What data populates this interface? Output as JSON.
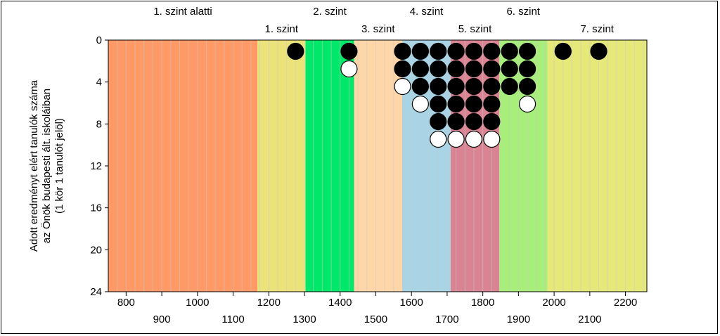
{
  "chart_data": {
    "type": "scatter",
    "ylabel_lines": [
      "Adott eredményt elért tanulók száma",
      "az Önök budapesti ált. iskoláiban",
      "(1 kör 1 tanulót jelöl)"
    ],
    "xlim": [
      750,
      2260
    ],
    "ylim": [
      0,
      24
    ],
    "y_inverted": true,
    "y_ticks": [
      0,
      4,
      8,
      12,
      16,
      20,
      24
    ],
    "x_ticks_major": [
      800,
      1000,
      1200,
      1400,
      1600,
      1800,
      2000,
      2200
    ],
    "x_ticks_minor": [
      900,
      1100,
      1300,
      1500,
      1700,
      1900,
      2100
    ],
    "bands": [
      {
        "label": "1. szint alatti",
        "from": 750,
        "to": 1168,
        "color": "#FF9966",
        "label_row": "top"
      },
      {
        "label": "1. szint",
        "from": 1168,
        "to": 1303,
        "color": "#EBE37A",
        "label_row": "bottom"
      },
      {
        "label": "2. szint",
        "from": 1303,
        "to": 1439,
        "color": "#00E86A",
        "label_row": "top"
      },
      {
        "label": "3. szint",
        "from": 1439,
        "to": 1574,
        "color": "#FFD6A8",
        "label_row": "bottom"
      },
      {
        "label": "4. szint",
        "from": 1574,
        "to": 1710,
        "color": "#A8D4E6",
        "label_row": "top"
      },
      {
        "label": "5. szint",
        "from": 1710,
        "to": 1846,
        "color": "#D98393",
        "label_row": "bottom"
      },
      {
        "label": "6. szint",
        "from": 1846,
        "to": 1981,
        "color": "#A8EE7A",
        "label_row": "top"
      },
      {
        "label": "7. szint",
        "from": 1981,
        "to": 2260,
        "color": "#E6E87A",
        "label_row": "bottom"
      }
    ],
    "series": [
      {
        "marker": "filled",
        "color": "#000000",
        "points": [
          {
            "x": 1275,
            "count": 1
          },
          {
            "x": 1425,
            "count": 1
          },
          {
            "x": 1575,
            "count": 2
          },
          {
            "x": 1625,
            "count": 3
          },
          {
            "x": 1675,
            "count": 5
          },
          {
            "x": 1725,
            "count": 5
          },
          {
            "x": 1775,
            "count": 5
          },
          {
            "x": 1825,
            "count": 5
          },
          {
            "x": 1875,
            "count": 3
          },
          {
            "x": 1925,
            "count": 3
          },
          {
            "x": 2025,
            "count": 1
          },
          {
            "x": 2125,
            "count": 1
          }
        ]
      },
      {
        "marker": "hollow",
        "color": "#FFFFFF",
        "points": [
          {
            "x": 1425,
            "count": 1
          },
          {
            "x": 1575,
            "count": 1
          },
          {
            "x": 1625,
            "count": 1
          },
          {
            "x": 1675,
            "count": 1
          },
          {
            "x": 1725,
            "count": 1
          },
          {
            "x": 1775,
            "count": 1
          },
          {
            "x": 1825,
            "count": 1
          },
          {
            "x": 1925,
            "count": 1
          }
        ]
      }
    ]
  },
  "colors": {
    "axis": "#000000",
    "gridline": "#c8c8c8"
  }
}
